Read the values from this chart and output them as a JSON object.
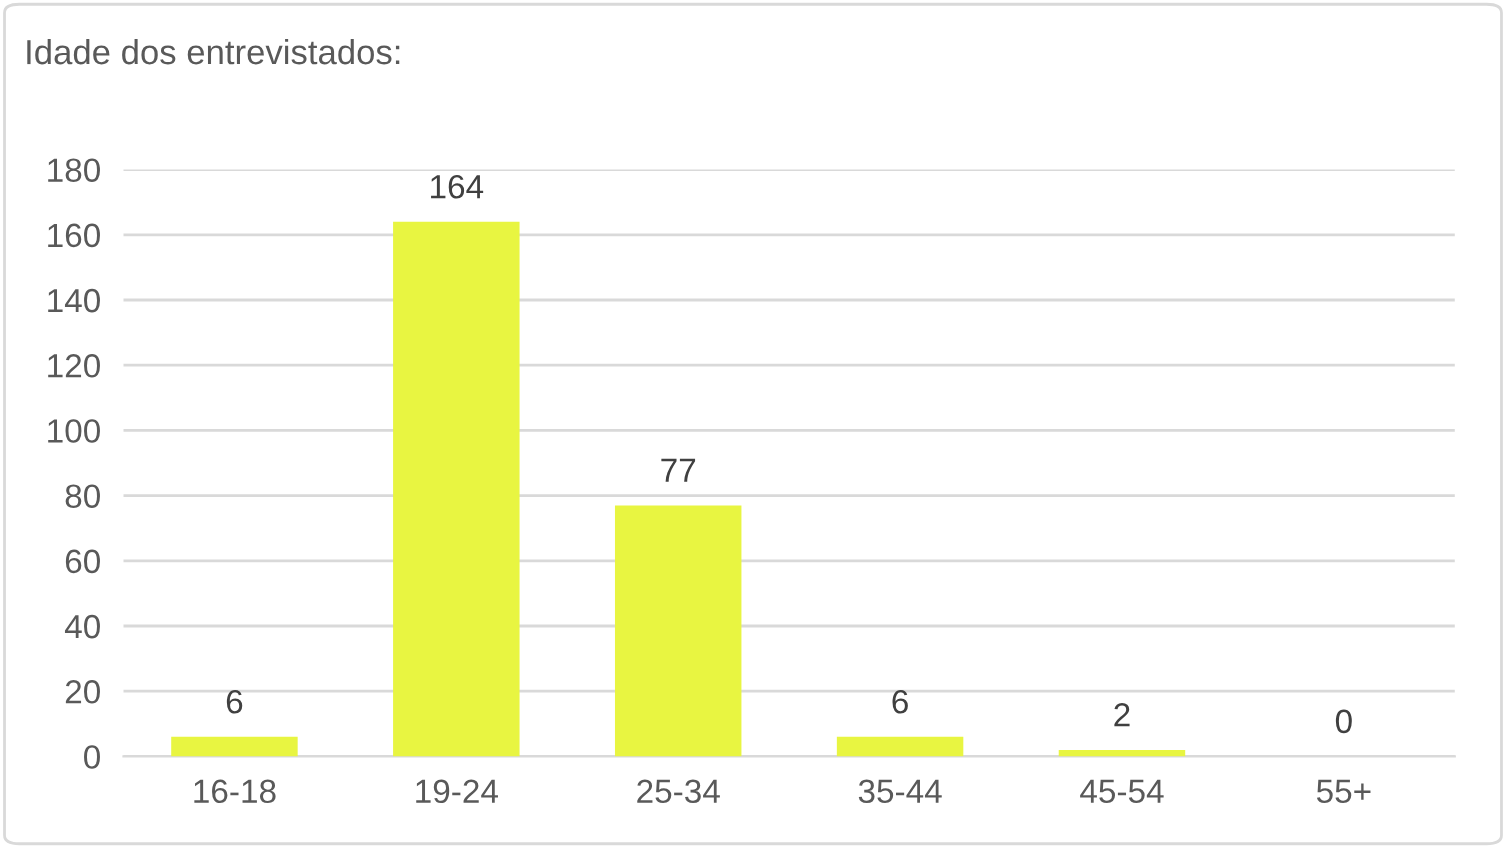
{
  "chart_data": {
    "type": "bar",
    "title": "Idade dos entrevistados:",
    "categories": [
      "16-18",
      "19-24",
      "25-34",
      "35-44",
      "45-54",
      "55+"
    ],
    "values": [
      6,
      164,
      77,
      6,
      2,
      0
    ],
    "color": "#e8f541",
    "ylim": [
      0,
      180
    ],
    "yticks": [
      0,
      20,
      40,
      60,
      80,
      100,
      120,
      140,
      160,
      180
    ],
    "grid": "y",
    "data_labels": true
  }
}
